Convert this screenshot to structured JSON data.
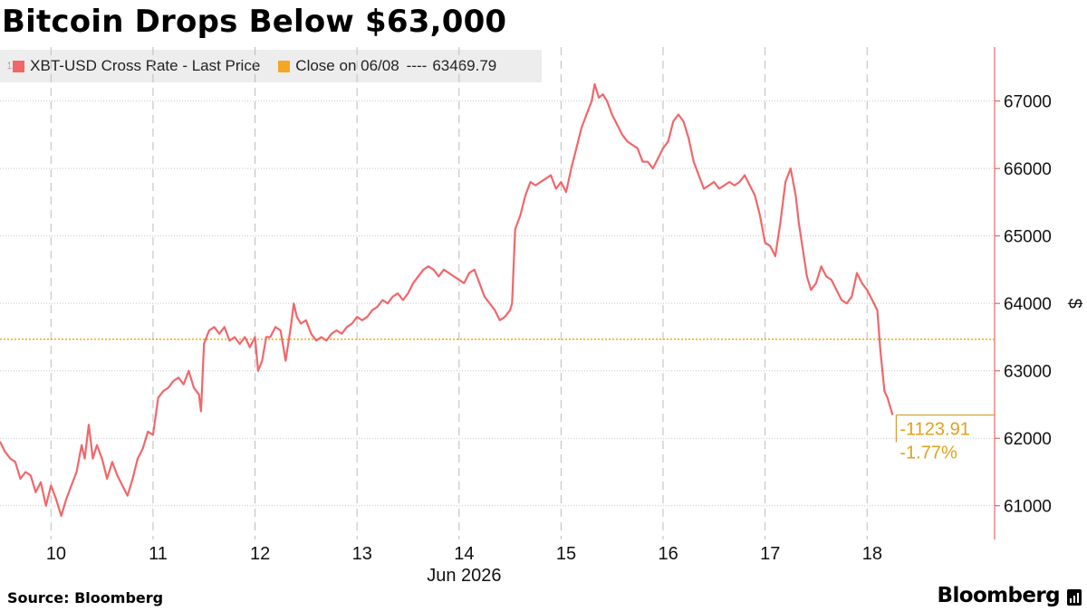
{
  "title": "Bitcoin Drops Below $63,000",
  "legend": {
    "series_label": "XBT-USD Cross Rate - Last Price",
    "series_color": "#f0676a",
    "close_label": "Close on 06/08",
    "close_dashes": "----",
    "close_value": "63469.79",
    "close_color": "#f5a623"
  },
  "source": "Source: Bloomberg",
  "brand": "Bloomberg",
  "chart_data": {
    "type": "line",
    "ylabel": "$",
    "ylim": [
      60500,
      67800
    ],
    "yticks": [
      61000,
      62000,
      63000,
      64000,
      65000,
      66000,
      67000
    ],
    "xlim": [
      9.45,
      19.2
    ],
    "xticks": [
      {
        "x": 10,
        "label": "10"
      },
      {
        "x": 11,
        "label": "11"
      },
      {
        "x": 12,
        "label": "12"
      },
      {
        "x": 13,
        "label": "13"
      },
      {
        "x": 14,
        "label": "14"
      },
      {
        "x": 15,
        "label": "15"
      },
      {
        "x": 16,
        "label": "16"
      },
      {
        "x": 17,
        "label": "17"
      },
      {
        "x": 18,
        "label": "18"
      }
    ],
    "xaxis_label": "Jun 2026",
    "day_separators": [
      9.95,
      10.95,
      11.95,
      12.95,
      13.95,
      14.95,
      15.95,
      16.95,
      17.95
    ],
    "reference_line": {
      "value": 63469.79,
      "label": "Close on 06/08",
      "color": "#f5a623"
    },
    "last_value": 62345.88,
    "change": "-1123.91",
    "change_pct": "-1.77%",
    "series": [
      {
        "name": "XBT-USD Cross Rate - Last Price",
        "color": "#f0676a",
        "points": [
          [
            9.45,
            61950
          ],
          [
            9.5,
            61800
          ],
          [
            9.55,
            61700
          ],
          [
            9.6,
            61650
          ],
          [
            9.65,
            61400
          ],
          [
            9.7,
            61500
          ],
          [
            9.75,
            61450
          ],
          [
            9.8,
            61200
          ],
          [
            9.85,
            61350
          ],
          [
            9.9,
            61000
          ],
          [
            9.95,
            61300
          ],
          [
            10.0,
            61100
          ],
          [
            10.05,
            60850
          ],
          [
            10.1,
            61100
          ],
          [
            10.15,
            61300
          ],
          [
            10.2,
            61500
          ],
          [
            10.25,
            61900
          ],
          [
            10.28,
            61700
          ],
          [
            10.32,
            62200
          ],
          [
            10.36,
            61700
          ],
          [
            10.4,
            61900
          ],
          [
            10.45,
            61700
          ],
          [
            10.5,
            61400
          ],
          [
            10.55,
            61650
          ],
          [
            10.6,
            61450
          ],
          [
            10.65,
            61300
          ],
          [
            10.7,
            61150
          ],
          [
            10.75,
            61400
          ],
          [
            10.8,
            61700
          ],
          [
            10.85,
            61850
          ],
          [
            10.9,
            62100
          ],
          [
            10.95,
            62050
          ],
          [
            11.0,
            62600
          ],
          [
            11.05,
            62700
          ],
          [
            11.1,
            62750
          ],
          [
            11.15,
            62850
          ],
          [
            11.2,
            62900
          ],
          [
            11.25,
            62800
          ],
          [
            11.3,
            63000
          ],
          [
            11.35,
            62750
          ],
          [
            11.4,
            62650
          ],
          [
            11.42,
            62400
          ],
          [
            11.45,
            63400
          ],
          [
            11.5,
            63600
          ],
          [
            11.55,
            63650
          ],
          [
            11.6,
            63550
          ],
          [
            11.65,
            63650
          ],
          [
            11.7,
            63450
          ],
          [
            11.75,
            63500
          ],
          [
            11.8,
            63400
          ],
          [
            11.85,
            63500
          ],
          [
            11.9,
            63350
          ],
          [
            11.95,
            63500
          ],
          [
            11.98,
            63000
          ],
          [
            12.02,
            63150
          ],
          [
            12.06,
            63500
          ],
          [
            12.1,
            63500
          ],
          [
            12.15,
            63650
          ],
          [
            12.2,
            63600
          ],
          [
            12.25,
            63150
          ],
          [
            12.3,
            63650
          ],
          [
            12.33,
            64000
          ],
          [
            12.36,
            63800
          ],
          [
            12.4,
            63700
          ],
          [
            12.45,
            63750
          ],
          [
            12.5,
            63550
          ],
          [
            12.55,
            63450
          ],
          [
            12.6,
            63500
          ],
          [
            12.65,
            63450
          ],
          [
            12.7,
            63550
          ],
          [
            12.75,
            63600
          ],
          [
            12.8,
            63550
          ],
          [
            12.85,
            63650
          ],
          [
            12.9,
            63700
          ],
          [
            12.95,
            63800
          ],
          [
            13.0,
            63750
          ],
          [
            13.05,
            63800
          ],
          [
            13.1,
            63900
          ],
          [
            13.15,
            63950
          ],
          [
            13.2,
            64050
          ],
          [
            13.25,
            64000
          ],
          [
            13.3,
            64100
          ],
          [
            13.35,
            64150
          ],
          [
            13.4,
            64050
          ],
          [
            13.45,
            64150
          ],
          [
            13.5,
            64300
          ],
          [
            13.55,
            64400
          ],
          [
            13.6,
            64500
          ],
          [
            13.65,
            64550
          ],
          [
            13.7,
            64500
          ],
          [
            13.75,
            64400
          ],
          [
            13.8,
            64500
          ],
          [
            13.85,
            64450
          ],
          [
            13.9,
            64400
          ],
          [
            13.95,
            64350
          ],
          [
            14.0,
            64300
          ],
          [
            14.05,
            64450
          ],
          [
            14.1,
            64500
          ],
          [
            14.15,
            64300
          ],
          [
            14.2,
            64100
          ],
          [
            14.25,
            64000
          ],
          [
            14.3,
            63900
          ],
          [
            14.35,
            63750
          ],
          [
            14.4,
            63800
          ],
          [
            14.45,
            63900
          ],
          [
            14.47,
            64000
          ],
          [
            14.5,
            65100
          ],
          [
            14.55,
            65300
          ],
          [
            14.6,
            65600
          ],
          [
            14.65,
            65800
          ],
          [
            14.7,
            65750
          ],
          [
            14.75,
            65800
          ],
          [
            14.8,
            65850
          ],
          [
            14.85,
            65900
          ],
          [
            14.9,
            65700
          ],
          [
            14.95,
            65800
          ],
          [
            15.0,
            65650
          ],
          [
            15.05,
            66000
          ],
          [
            15.1,
            66300
          ],
          [
            15.15,
            66600
          ],
          [
            15.2,
            66800
          ],
          [
            15.25,
            67000
          ],
          [
            15.28,
            67250
          ],
          [
            15.32,
            67050
          ],
          [
            15.36,
            67100
          ],
          [
            15.4,
            67000
          ],
          [
            15.45,
            66800
          ],
          [
            15.5,
            66650
          ],
          [
            15.55,
            66500
          ],
          [
            15.6,
            66400
          ],
          [
            15.65,
            66350
          ],
          [
            15.7,
            66300
          ],
          [
            15.75,
            66100
          ],
          [
            15.8,
            66100
          ],
          [
            15.85,
            66000
          ],
          [
            15.9,
            66150
          ],
          [
            15.95,
            66300
          ],
          [
            16.0,
            66400
          ],
          [
            16.05,
            66700
          ],
          [
            16.1,
            66800
          ],
          [
            16.15,
            66700
          ],
          [
            16.2,
            66450
          ],
          [
            16.25,
            66100
          ],
          [
            16.3,
            65900
          ],
          [
            16.35,
            65700
          ],
          [
            16.4,
            65750
          ],
          [
            16.45,
            65800
          ],
          [
            16.5,
            65700
          ],
          [
            16.55,
            65750
          ],
          [
            16.6,
            65800
          ],
          [
            16.65,
            65750
          ],
          [
            16.7,
            65800
          ],
          [
            16.75,
            65900
          ],
          [
            16.8,
            65750
          ],
          [
            16.85,
            65600
          ],
          [
            16.9,
            65300
          ],
          [
            16.95,
            64900
          ],
          [
            17.0,
            64850
          ],
          [
            17.05,
            64700
          ],
          [
            17.1,
            65200
          ],
          [
            17.15,
            65800
          ],
          [
            17.2,
            66000
          ],
          [
            17.25,
            65600
          ],
          [
            17.28,
            65200
          ],
          [
            17.32,
            64800
          ],
          [
            17.36,
            64400
          ],
          [
            17.4,
            64200
          ],
          [
            17.45,
            64300
          ],
          [
            17.5,
            64550
          ],
          [
            17.55,
            64400
          ],
          [
            17.6,
            64350
          ],
          [
            17.65,
            64200
          ],
          [
            17.7,
            64050
          ],
          [
            17.75,
            64000
          ],
          [
            17.8,
            64100
          ],
          [
            17.85,
            64450
          ],
          [
            17.9,
            64300
          ],
          [
            17.95,
            64200
          ],
          [
            18.0,
            64050
          ],
          [
            18.05,
            63900
          ],
          [
            18.08,
            63300
          ],
          [
            18.12,
            62700
          ],
          [
            18.15,
            62600
          ],
          [
            18.18,
            62450
          ],
          [
            18.2,
            62345.88
          ]
        ]
      }
    ]
  }
}
